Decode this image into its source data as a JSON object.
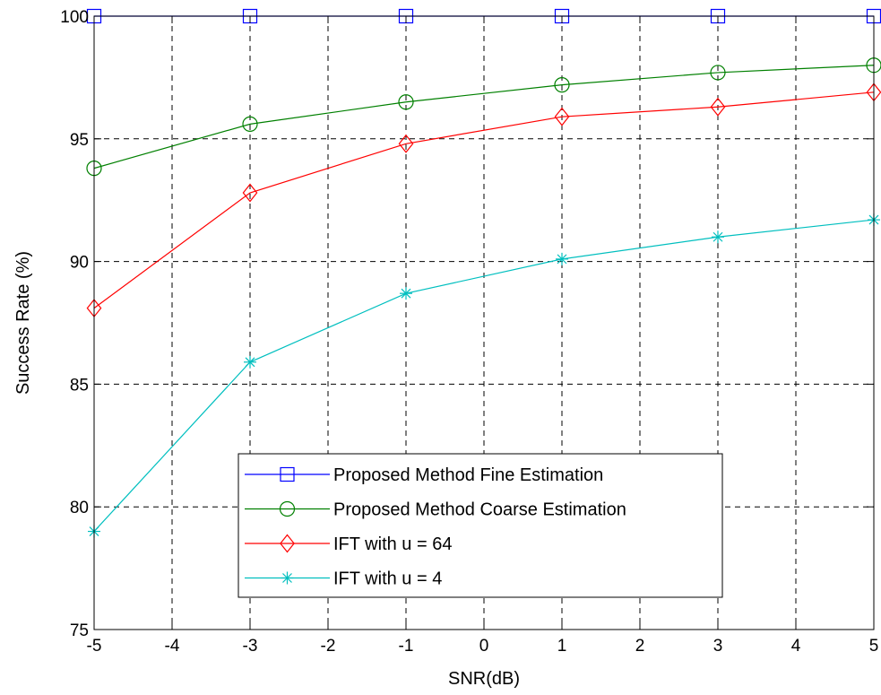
{
  "chart_data": {
    "type": "line",
    "title": "",
    "xlabel": "SNR(dB)",
    "ylabel": "Success Rate (%)",
    "xlim": [
      -5,
      5
    ],
    "ylim": [
      75,
      100
    ],
    "xticks": [
      -5,
      -4,
      -3,
      -2,
      -1,
      0,
      1,
      2,
      3,
      4,
      5
    ],
    "xtick_labels": [
      "-5",
      "-4",
      "-3",
      "-2",
      "-1",
      "0",
      "1",
      "2",
      "3",
      "4",
      "5"
    ],
    "yticks": [
      75,
      80,
      85,
      90,
      95,
      100
    ],
    "ytick_labels": [
      "75",
      "80",
      "85",
      "90",
      "95",
      "100"
    ],
    "grid": true,
    "legend_position": "lower-center",
    "x": [
      -5,
      -3,
      -1,
      1,
      3,
      5
    ],
    "series": [
      {
        "name": "Proposed Method Fine Estimation",
        "values": [
          100,
          100,
          100,
          100,
          100,
          100
        ],
        "color": "#0000ff",
        "marker": "square"
      },
      {
        "name": "Proposed Method Coarse Estimation",
        "values": [
          93.8,
          95.6,
          96.5,
          97.2,
          97.7,
          98.0
        ],
        "color": "#008000",
        "marker": "circle"
      },
      {
        "name": "IFT with u = 64",
        "values": [
          88.1,
          92.8,
          94.8,
          95.9,
          96.3,
          96.9
        ],
        "color": "#ff0000",
        "marker": "diamond"
      },
      {
        "name": "IFT with u = 4",
        "values": [
          79.0,
          85.9,
          88.7,
          90.1,
          91.0,
          91.7
        ],
        "color": "#00bfbf",
        "marker": "asterisk"
      }
    ]
  }
}
